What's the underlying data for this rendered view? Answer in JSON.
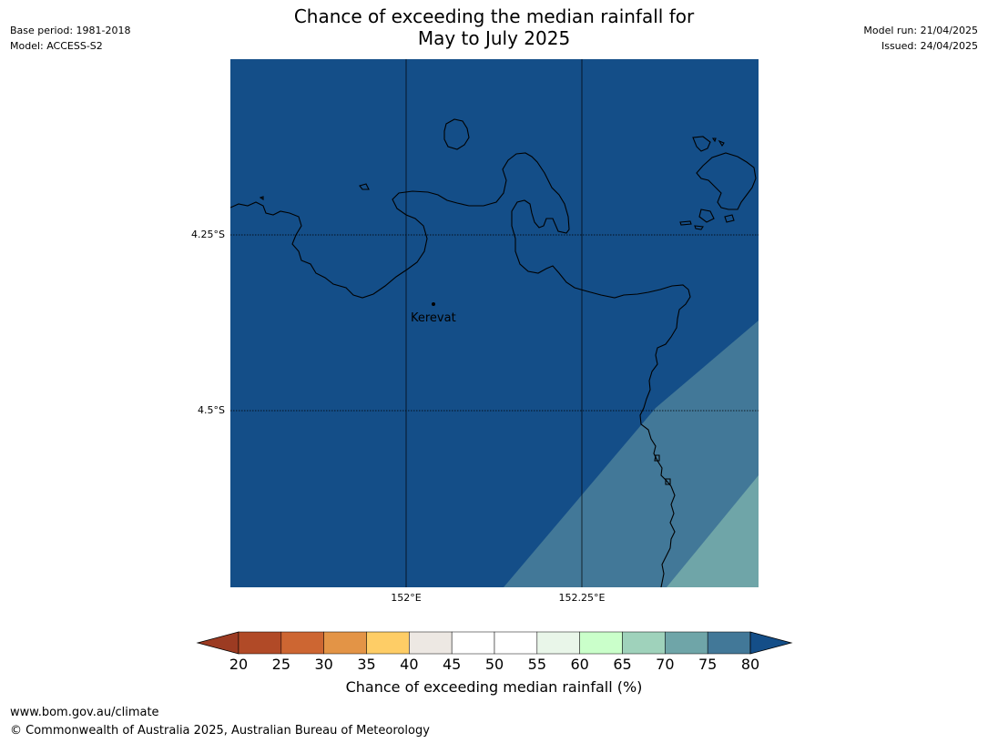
{
  "title_line1": "Chance of exceeding the median rainfall for",
  "title_line2": "May to July 2025",
  "meta_left": {
    "line1": "Base period: 1981-2018",
    "line2": "Model: ACCESS-S2"
  },
  "meta_right": {
    "line1": "Model run: 21/04/2025",
    "line2": "Issued: 24/04/2025"
  },
  "map": {
    "latitudes": [
      "4.25°S",
      "4.5°S"
    ],
    "longitudes": [
      "152°E",
      "152.25°E"
    ],
    "place": {
      "name": "Kerevat"
    },
    "colors": {
      "band_75_80": "#144e88",
      "band_70_75": "#427898",
      "band_65_70": "#6fa5a8",
      "coast": "#000000"
    }
  },
  "colorbar": {
    "title": "Chance of exceeding median rainfall (%)",
    "ticks": [
      "20",
      "25",
      "30",
      "35",
      "40",
      "45",
      "50",
      "55",
      "60",
      "65",
      "70",
      "75",
      "80"
    ],
    "under_color": "#9c3b22",
    "over_color": "#144e88",
    "colors": [
      "#b14a27",
      "#cd6632",
      "#e39446",
      "#fecd66",
      "#ede8e3",
      "#ffffff",
      "#ffffff",
      "#e9f6e9",
      "#caffca",
      "#9fd2bb",
      "#6fa5a8",
      "#427898"
    ]
  },
  "footer": {
    "url": "www.bom.gov.au/climate",
    "copyright": "© Commonwealth of Australia 2025, Australian Bureau of Meteorology"
  }
}
